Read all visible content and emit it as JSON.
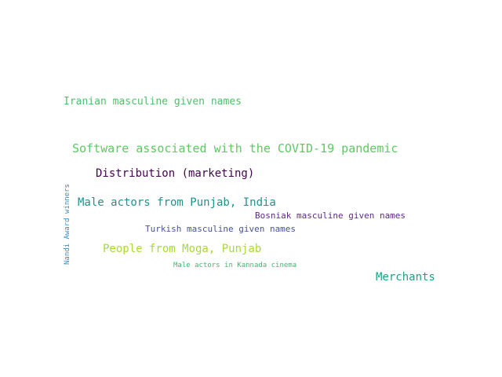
{
  "words": [
    {
      "text": "Iranian masculine given names",
      "color": "#4fc16b"
    },
    {
      "text": "Software associated with the COVID-19 pandemic",
      "color": "#5ec962"
    },
    {
      "text": "Distribution (marketing)",
      "color": "#440154"
    },
    {
      "text": "Nandi Award winners",
      "color": "#3b8bc2"
    },
    {
      "text": "Male actors from Punjab, India",
      "color": "#21918c"
    },
    {
      "text": "Bosniak masculine given names",
      "color": "#5b2a86"
    },
    {
      "text": "Turkish masculine given names",
      "color": "#46539a"
    },
    {
      "text": "People from Moga, Punjab",
      "color": "#a8db34"
    },
    {
      "text": "Male actors in Kannada cinema",
      "color": "#3dbc74"
    },
    {
      "text": "Merchants",
      "color": "#1fa187"
    }
  ]
}
